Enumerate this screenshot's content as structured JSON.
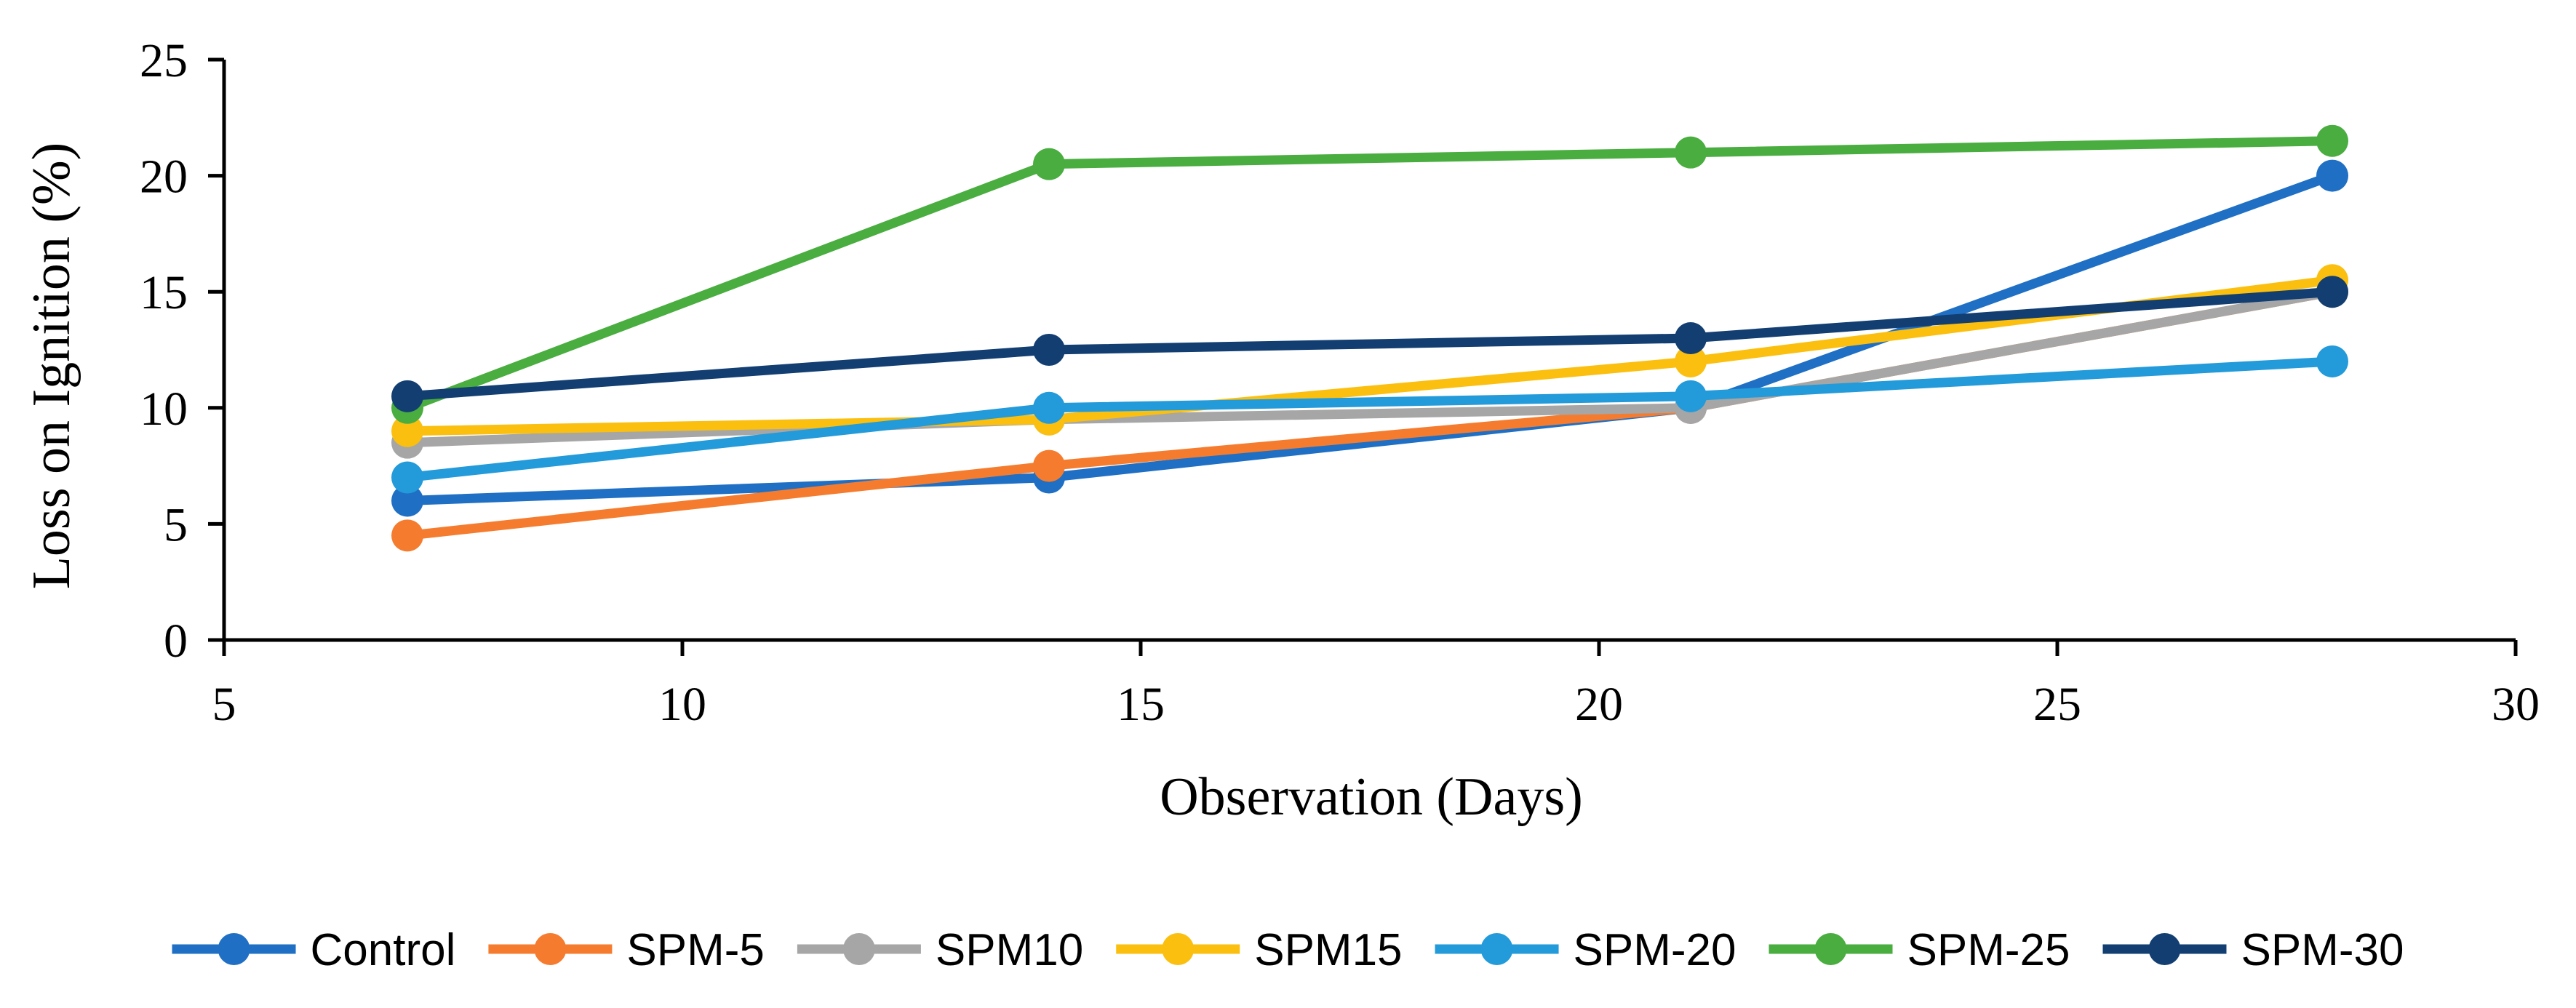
{
  "chart_data": {
    "type": "line",
    "title": "",
    "xlabel": "Observation (Days)",
    "ylabel": "Loss on Ignition  (%)",
    "xlim": [
      5,
      30
    ],
    "ylim": [
      0,
      25
    ],
    "x_ticks": [
      5,
      10,
      15,
      20,
      25,
      30
    ],
    "y_ticks": [
      0,
      5,
      10,
      15,
      20,
      25
    ],
    "grid": false,
    "legend_position": "bottom",
    "x": [
      7,
      14,
      21,
      28
    ],
    "series": [
      {
        "name": "Control",
        "color": "#1f6fc4",
        "values": [
          6,
          7,
          10,
          20
        ]
      },
      {
        "name": "SPM-5",
        "color": "#f57c2e",
        "values": [
          4.5,
          7.5,
          10,
          15
        ]
      },
      {
        "name": "SPM10",
        "color": "#a6a6a6",
        "values": [
          8.5,
          9.5,
          10,
          15
        ]
      },
      {
        "name": "SPM15",
        "color": "#fbbf0f",
        "values": [
          9,
          9.5,
          12,
          15.5
        ]
      },
      {
        "name": "SPM-20",
        "color": "#239ad9",
        "values": [
          7,
          10,
          10.5,
          12
        ]
      },
      {
        "name": "SPM-25",
        "color": "#49ad3f",
        "values": [
          10,
          20.5,
          21,
          21.5
        ]
      },
      {
        "name": "SPM-30",
        "color": "#123e72",
        "values": [
          10.5,
          12.5,
          13,
          15
        ]
      }
    ]
  }
}
